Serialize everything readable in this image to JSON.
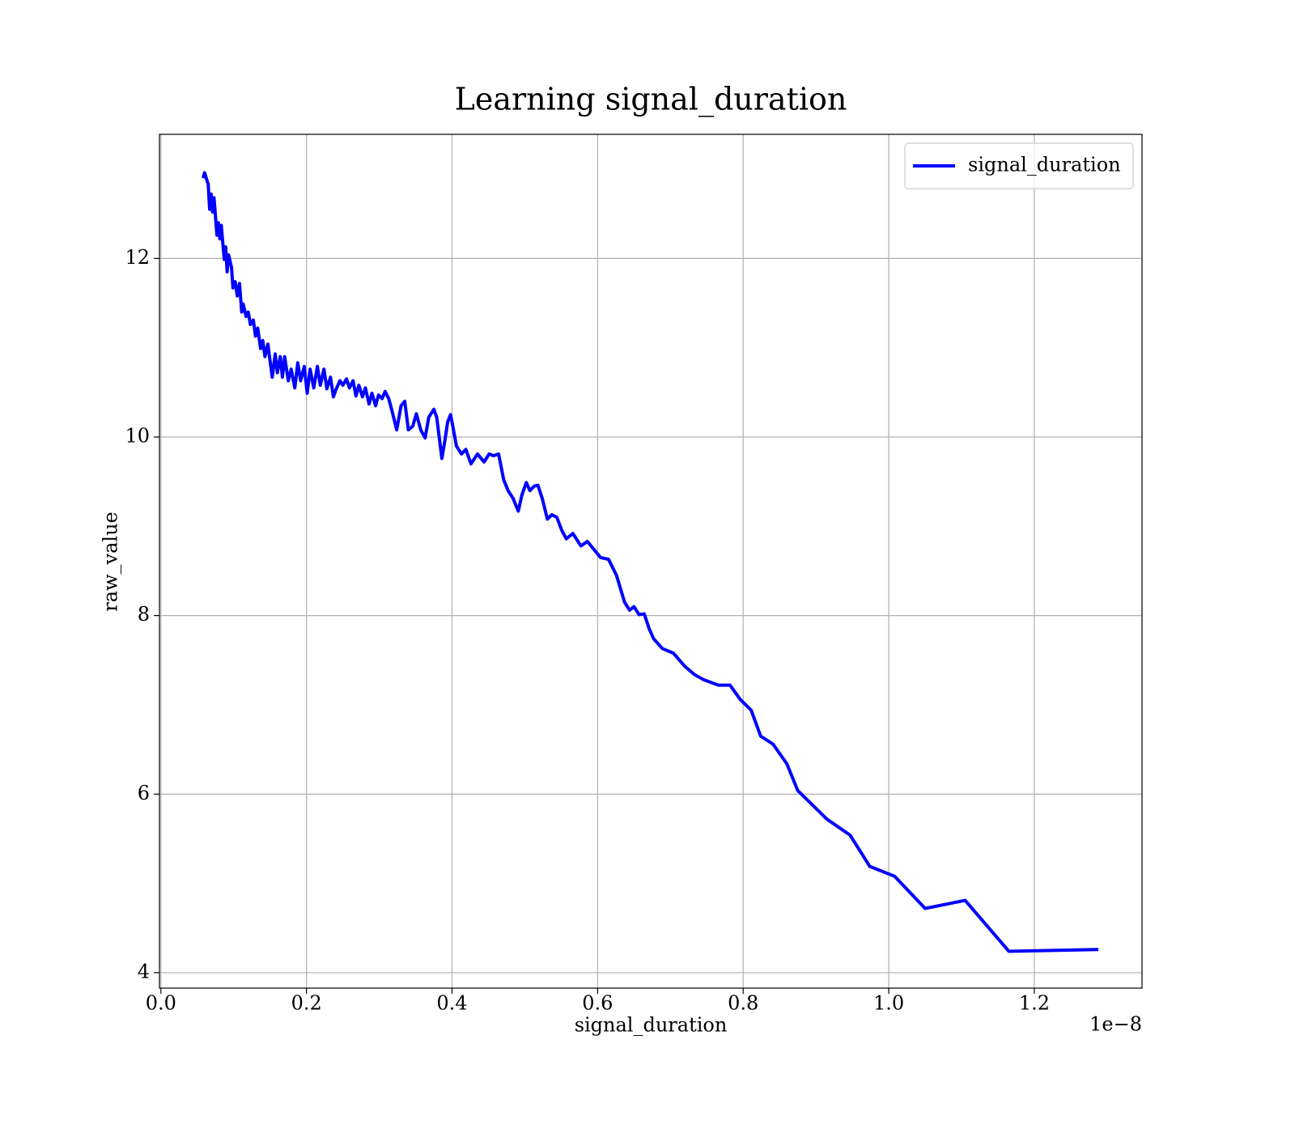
{
  "chart_data": {
    "type": "line",
    "title": "Learning signal_duration",
    "x_label": "signal_duration",
    "y_label": "raw_value",
    "x_offset_label": "1e−8",
    "x": [
      0.058,
      0.06,
      0.065,
      0.067,
      0.069,
      0.071,
      0.073,
      0.077,
      0.079,
      0.081,
      0.083,
      0.087,
      0.089,
      0.091,
      0.093,
      0.097,
      0.099,
      0.102,
      0.105,
      0.108,
      0.111,
      0.113,
      0.117,
      0.12,
      0.123,
      0.127,
      0.13,
      0.133,
      0.137,
      0.14,
      0.143,
      0.147,
      0.15,
      0.153,
      0.157,
      0.16,
      0.164,
      0.167,
      0.17,
      0.175,
      0.179,
      0.184,
      0.188,
      0.192,
      0.197,
      0.201,
      0.205,
      0.21,
      0.215,
      0.219,
      0.224,
      0.228,
      0.233,
      0.237,
      0.241,
      0.246,
      0.25,
      0.255,
      0.259,
      0.264,
      0.268,
      0.272,
      0.277,
      0.281,
      0.286,
      0.29,
      0.295,
      0.299,
      0.304,
      0.308,
      0.313,
      0.317,
      0.324,
      0.33,
      0.335,
      0.34,
      0.346,
      0.351,
      0.357,
      0.363,
      0.368,
      0.375,
      0.379,
      0.386,
      0.39,
      0.394,
      0.398,
      0.402,
      0.406,
      0.413,
      0.419,
      0.426,
      0.435,
      0.444,
      0.451,
      0.457,
      0.464,
      0.471,
      0.477,
      0.484,
      0.491,
      0.496,
      0.502,
      0.507,
      0.513,
      0.518,
      0.524,
      0.531,
      0.537,
      0.544,
      0.551,
      0.557,
      0.566,
      0.577,
      0.586,
      0.595,
      0.604,
      0.615,
      0.626,
      0.637,
      0.644,
      0.65,
      0.657,
      0.664,
      0.671,
      0.677,
      0.689,
      0.704,
      0.72,
      0.733,
      0.746,
      0.766,
      0.782,
      0.796,
      0.811,
      0.824,
      0.841,
      0.86,
      0.875,
      0.915,
      0.947,
      0.974,
      1.008,
      1.05,
      1.105,
      1.165,
      1.288
    ],
    "series": [
      {
        "name": "signal_duration",
        "color": "#0000ff",
        "values": [
          12.9,
          12.96,
          12.83,
          12.55,
          12.72,
          12.52,
          12.68,
          12.26,
          12.4,
          12.22,
          12.37,
          11.99,
          12.13,
          11.85,
          12.04,
          11.9,
          11.67,
          11.74,
          11.58,
          11.72,
          11.4,
          11.49,
          11.35,
          11.4,
          11.26,
          11.31,
          11.13,
          11.22,
          10.99,
          11.08,
          10.9,
          11.04,
          10.85,
          10.67,
          10.93,
          10.72,
          10.9,
          10.67,
          10.9,
          10.63,
          10.76,
          10.55,
          10.83,
          10.63,
          10.79,
          10.49,
          10.76,
          10.55,
          10.79,
          10.58,
          10.76,
          10.54,
          10.67,
          10.45,
          10.54,
          10.63,
          10.58,
          10.65,
          10.55,
          10.63,
          10.46,
          10.58,
          10.45,
          10.55,
          10.37,
          10.49,
          10.35,
          10.47,
          10.43,
          10.51,
          10.43,
          10.31,
          10.08,
          10.35,
          10.4,
          10.08,
          10.12,
          10.26,
          10.08,
          9.99,
          10.22,
          10.31,
          10.22,
          9.76,
          9.95,
          10.17,
          10.25,
          10.08,
          9.9,
          9.81,
          9.86,
          9.7,
          9.81,
          9.72,
          9.81,
          9.79,
          9.81,
          9.52,
          9.4,
          9.31,
          9.17,
          9.35,
          9.49,
          9.4,
          9.45,
          9.46,
          9.31,
          9.08,
          9.13,
          9.1,
          8.95,
          8.86,
          8.92,
          8.78,
          8.83,
          8.74,
          8.65,
          8.63,
          8.45,
          8.15,
          8.06,
          8.1,
          8.01,
          8.02,
          7.85,
          7.74,
          7.63,
          7.58,
          7.43,
          7.34,
          7.28,
          7.22,
          7.22,
          7.06,
          6.94,
          6.65,
          6.56,
          6.34,
          6.04,
          5.72,
          5.54,
          5.19,
          5.08,
          4.72,
          4.81,
          4.24,
          4.26
        ]
      }
    ],
    "xlim": [
      -0.002,
      1.348
    ],
    "ylim": [
      3.827,
      13.39
    ],
    "xticks": [
      {
        "value": 0,
        "label": "0.0"
      },
      {
        "value": 0.2,
        "label": "0.2"
      },
      {
        "value": 0.4,
        "label": "0.4"
      },
      {
        "value": 0.6,
        "label": "0.6"
      },
      {
        "value": 0.8,
        "label": "0.8"
      },
      {
        "value": 1.0,
        "label": "1.0"
      },
      {
        "value": 1.2,
        "label": "1.2"
      }
    ],
    "yticks": [
      4,
      6,
      8,
      10,
      12
    ],
    "grid": true,
    "legend": "upper right"
  }
}
